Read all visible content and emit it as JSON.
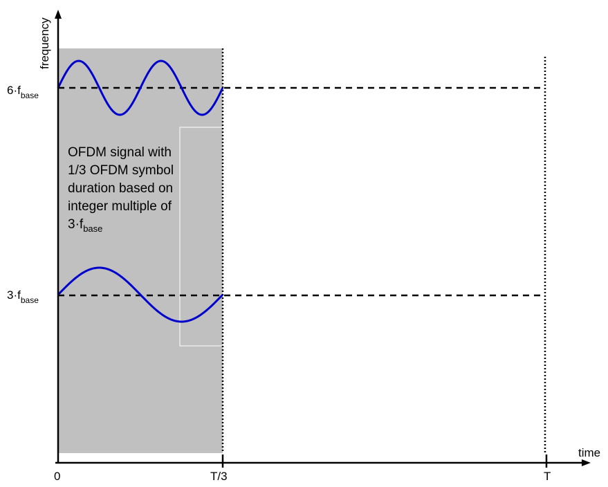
{
  "axes": {
    "y_label": "frequency",
    "x_label": "time",
    "x_ticks": {
      "origin": "0",
      "third": "T/3",
      "full": "T"
    }
  },
  "levels": {
    "high": {
      "prefix": "6·f",
      "sub": "base"
    },
    "low": {
      "prefix": "3·f",
      "sub": "base"
    }
  },
  "description": {
    "lines": [
      "OFDM signal with",
      "1/3 OFDM symbol",
      "duration based on",
      "integer multiple of"
    ],
    "last_prefix": "3·f",
    "last_sub": "base"
  },
  "colors": {
    "shaded_region": "#c0c0c0",
    "wave": "#0000cc",
    "lines": "#000000"
  },
  "waves": {
    "high_cycles": 2,
    "low_cycles": 1
  }
}
